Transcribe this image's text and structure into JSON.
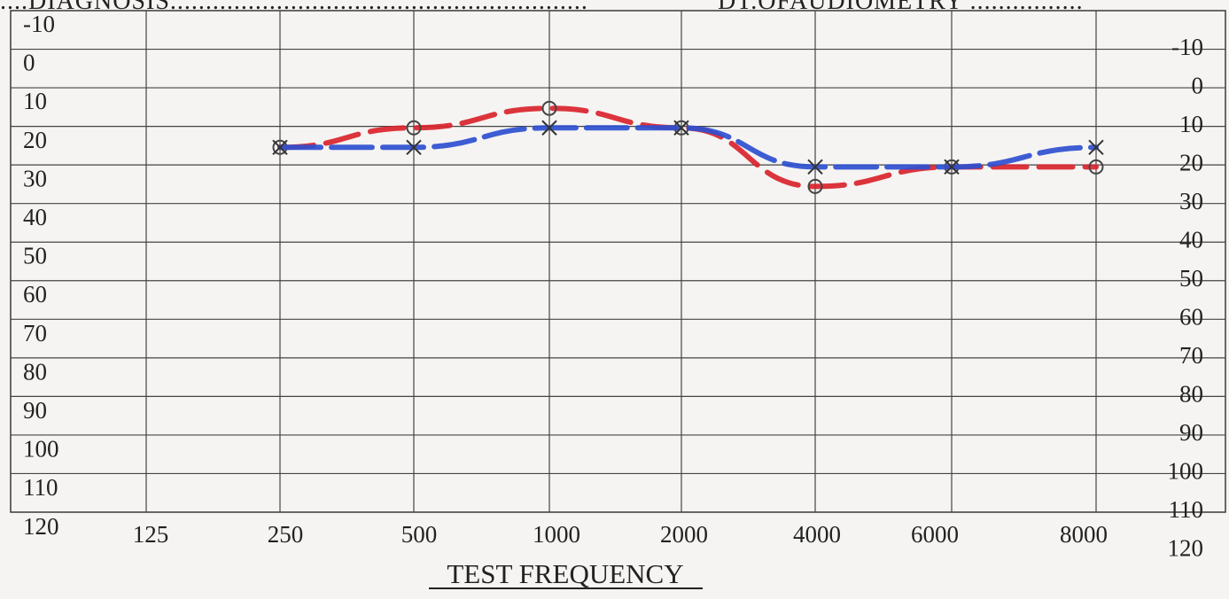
{
  "header": {
    "diagnosis_text": "....DIAGNOSIS...........................................................",
    "date_text": "DT.OFAUDIOMETRY ................"
  },
  "chart_data": {
    "type": "line",
    "title": "",
    "xlabel": "TEST FREQUENCY",
    "ylabel": "",
    "x_ticks": [
      "125",
      "250",
      "500",
      "1000",
      "2000",
      "4000",
      "6000",
      "8000"
    ],
    "y_ticks": [
      "-10",
      "0",
      "10",
      "20",
      "30",
      "40",
      "50",
      "60",
      "70",
      "80",
      "90",
      "100",
      "110",
      "120"
    ],
    "ylim": [
      -10,
      120
    ],
    "y_inverted": true,
    "grid": true,
    "series": [
      {
        "marker": "circle",
        "color": "#d9232d",
        "line_style": "dashed",
        "x": [
          "250",
          "500",
          "1000",
          "2000",
          "4000",
          "6000",
          "8000"
        ],
        "values": [
          20,
          15,
          10,
          15,
          30,
          25,
          25
        ]
      },
      {
        "marker": "cross",
        "color": "#2e4fd0",
        "line_style": "dashed",
        "x": [
          "250",
          "500",
          "1000",
          "2000",
          "4000",
          "6000",
          "8000"
        ],
        "values": [
          20,
          20,
          15,
          15,
          25,
          25,
          20
        ]
      }
    ]
  }
}
